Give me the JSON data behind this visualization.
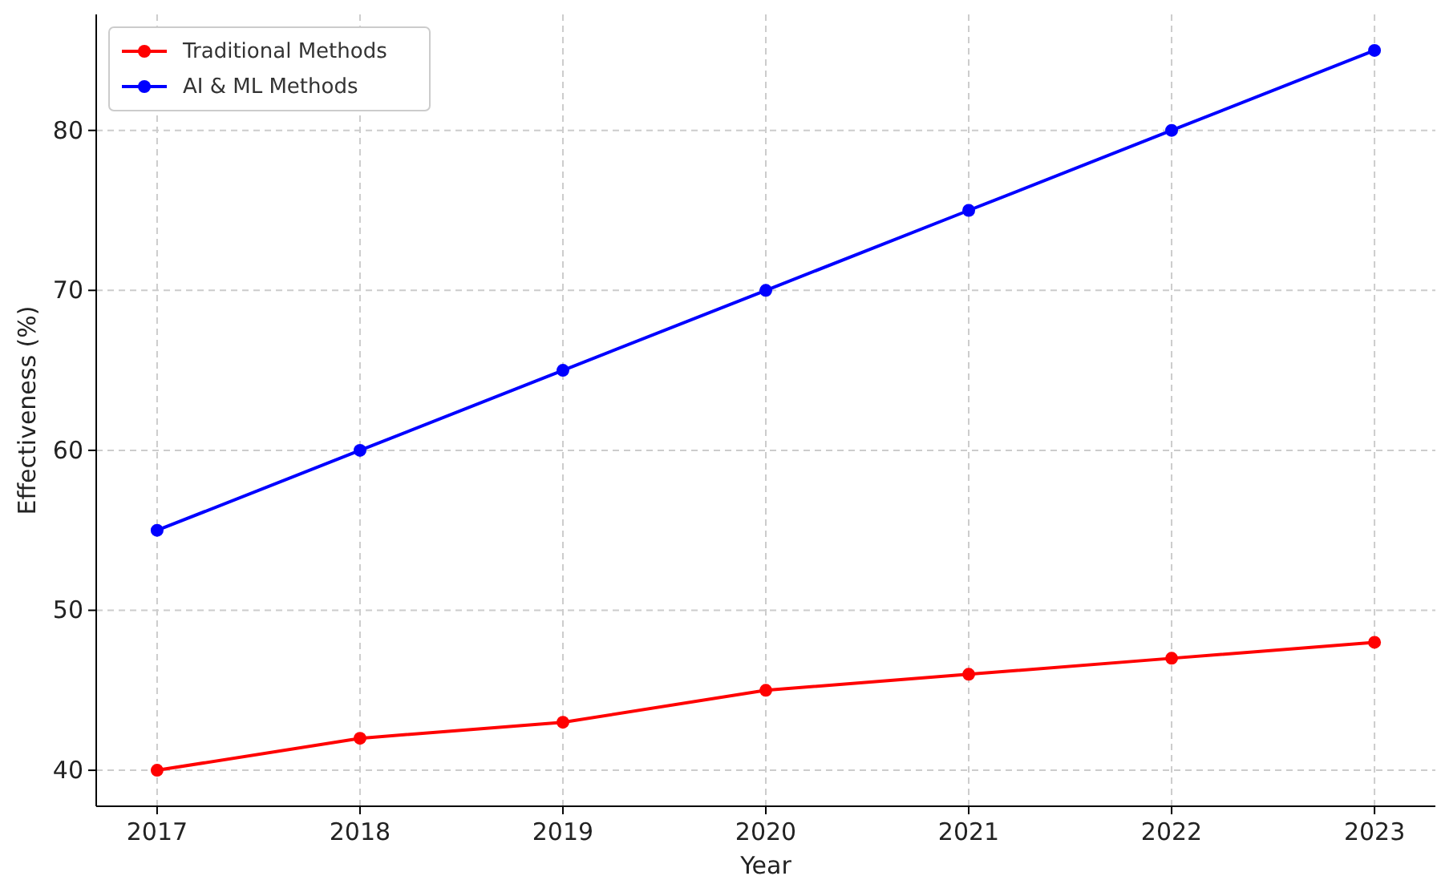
{
  "chart_data": {
    "type": "line",
    "xlabel": "Year",
    "ylabel": "Effectiveness (%)",
    "x": [
      2017,
      2018,
      2019,
      2020,
      2021,
      2022,
      2023
    ],
    "series": [
      {
        "name": "Traditional Methods",
        "color": "#ff0000",
        "values": [
          40,
          42,
          43,
          45,
          46,
          47,
          48
        ]
      },
      {
        "name": "AI & ML Methods",
        "color": "#0000ff",
        "values": [
          55,
          60,
          65,
          70,
          75,
          80,
          85
        ]
      }
    ],
    "xlim": [
      2016.7,
      2023.3
    ],
    "xticks": [
      2017,
      2018,
      2019,
      2020,
      2021,
      2022,
      2023
    ],
    "ylim": [
      37.75,
      87.25
    ],
    "yticks": [
      40,
      50,
      60,
      70,
      80
    ],
    "grid": true,
    "legend": "top left",
    "marker": "circle",
    "line_style": "solid"
  }
}
